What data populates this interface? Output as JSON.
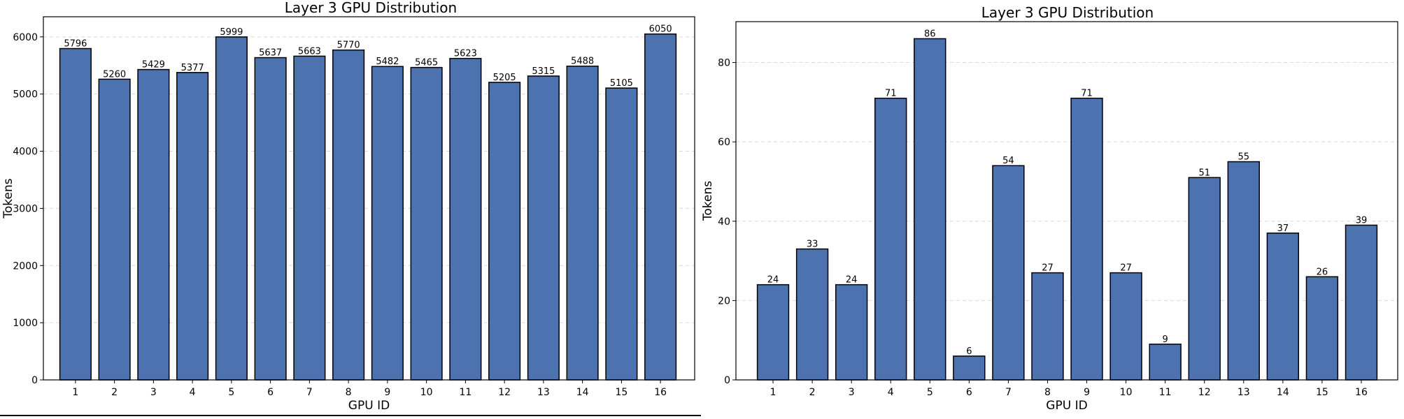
{
  "chart_data": [
    {
      "type": "bar",
      "title": "Layer 3 GPU Distribution",
      "xlabel": "GPU ID",
      "ylabel": "Tokens",
      "categories": [
        "1",
        "2",
        "3",
        "4",
        "5",
        "6",
        "7",
        "8",
        "9",
        "10",
        "11",
        "12",
        "13",
        "14",
        "15",
        "16"
      ],
      "values": [
        5796,
        5260,
        5429,
        5377,
        5999,
        5637,
        5663,
        5770,
        5482,
        5465,
        5623,
        5205,
        5315,
        5488,
        5105,
        6050
      ],
      "yticks": [
        0,
        1000,
        2000,
        3000,
        4000,
        5000,
        6000
      ],
      "ylim": [
        0,
        6352
      ],
      "grid": "horizontal-dashed",
      "bar_color": "#4c72b0",
      "edge_color": "#000000"
    },
    {
      "type": "bar",
      "title": "Layer 3 GPU Distribution",
      "xlabel": "GPU ID",
      "ylabel": "Tokens",
      "categories": [
        "1",
        "2",
        "3",
        "4",
        "5",
        "6",
        "7",
        "8",
        "9",
        "10",
        "11",
        "12",
        "13",
        "14",
        "15",
        "16"
      ],
      "values": [
        24,
        33,
        24,
        71,
        86,
        6,
        54,
        27,
        71,
        27,
        9,
        51,
        55,
        37,
        26,
        39
      ],
      "yticks": [
        0,
        20,
        40,
        60,
        80
      ],
      "ylim": [
        0,
        90.3
      ],
      "grid": "horizontal-dashed",
      "bar_color": "#4c72b0",
      "edge_color": "#000000"
    }
  ]
}
